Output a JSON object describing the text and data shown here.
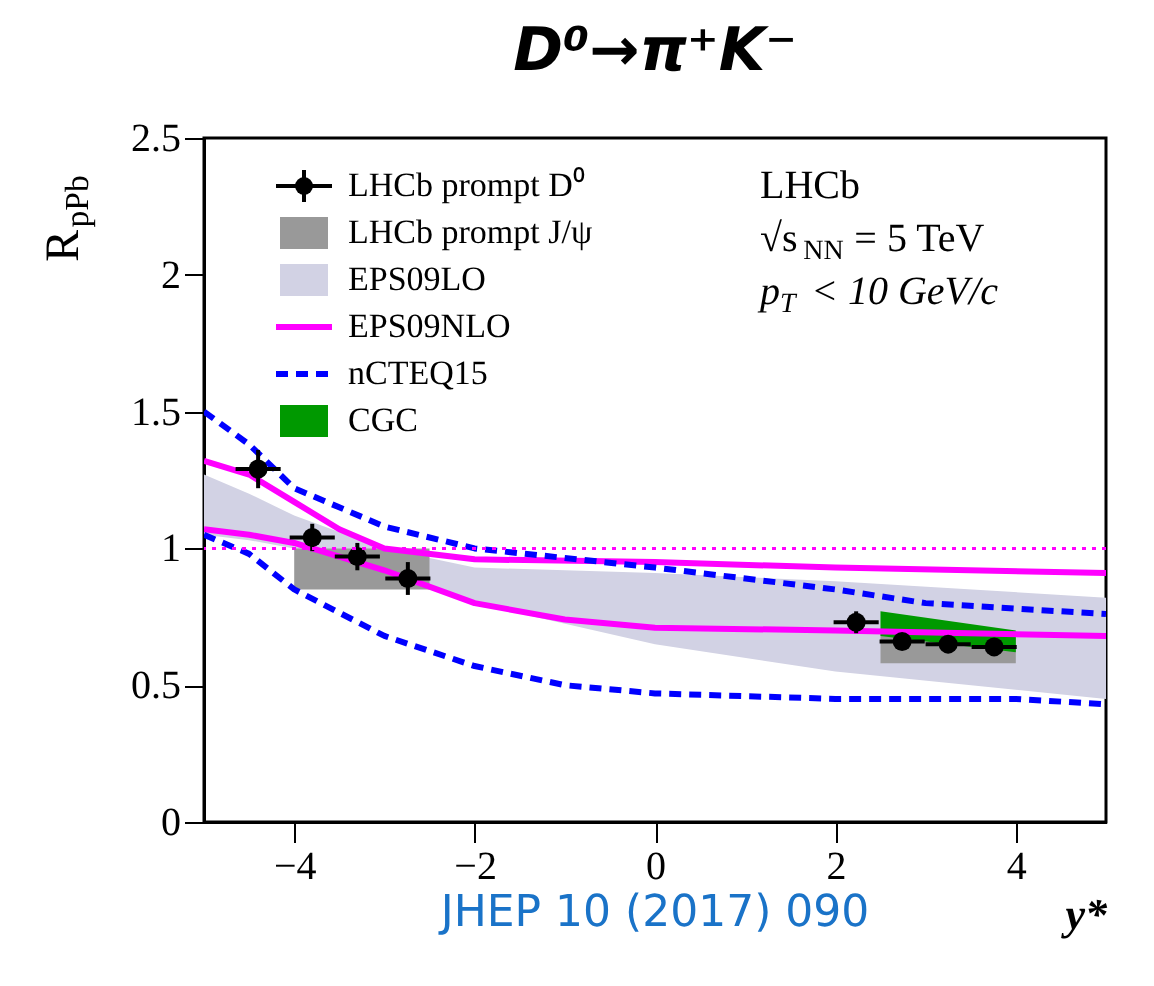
{
  "chart_data": {
    "type": "line",
    "title": "D⁰→π⁺K⁻",
    "xlabel": "y*",
    "ylabel": "R$_{pPb}$",
    "xlim": [
      -5,
      5
    ],
    "xticks": [
      -4,
      -2,
      0,
      2,
      4
    ],
    "ylim": [
      0,
      2.5
    ],
    "yticks": [
      0,
      0.5,
      1,
      1.5,
      2,
      2.5
    ],
    "grid": false,
    "legend": "top left",
    "annotations": [
      "LHCb",
      "√s$_{NN}$ = 5 TeV",
      "p$_{T}$ < 10 GeV/c",
      "JHEP 10 (2017) 090"
    ],
    "ref_lines": [
      {
        "axis": "y",
        "value": 1,
        "color": "#ff00ff",
        "line_style": "dotted"
      }
    ],
    "series": [
      {
        "name": "LHCb prompt D⁰",
        "type": "scatter",
        "marker": "circle",
        "color": "#000000",
        "x": [
          -4.4,
          -3.8,
          -3.3,
          -2.74,
          2.23,
          2.74,
          3.25,
          3.76
        ],
        "values": [
          1.29,
          1.04,
          0.97,
          0.89,
          0.73,
          0.66,
          0.65,
          0.64
        ],
        "errors": [
          0.07,
          0.05,
          0.05,
          0.06,
          0.04,
          0.03,
          0.03,
          0.03
        ],
        "xerrors": [
          0.25,
          0.25,
          0.25,
          0.25,
          0.25,
          0.25,
          0.25,
          0.25
        ]
      },
      {
        "name": "LHCb prompt J/ψ",
        "type": "area",
        "color": "#999999",
        "x": [
          -4,
          -2.5
        ],
        "values": [
          null,
          null
        ],
        "lower": [
          0.85,
          0.85
        ],
        "upper": [
          1.0,
          1.0
        ]
      },
      {
        "name": "EPS09LO",
        "type": "area",
        "color": "#d2d2e4",
        "x": [
          -5,
          -4.5,
          -4,
          -3,
          -2,
          0,
          2,
          5
        ],
        "values": [
          null,
          null,
          null,
          null,
          null,
          null,
          null,
          null
        ],
        "lower": [
          1.05,
          1.03,
          1.0,
          0.9,
          0.8,
          0.65,
          0.55,
          0.45
        ],
        "upper": [
          1.27,
          1.2,
          1.12,
          1.0,
          0.93,
          0.91,
          0.88,
          0.82
        ]
      },
      {
        "type": "area",
        "color": "#999999",
        "x": [
          2.5,
          4
        ],
        "values": [
          null,
          null
        ],
        "lower": [
          0.58,
          0.58
        ],
        "upper": [
          0.69,
          0.69
        ]
      },
      {
        "name": "EPS09NLO",
        "color": "#ff00ff",
        "x": [
          -5,
          -4.5,
          -4,
          -3.5,
          -3,
          -2,
          0,
          2,
          5
        ],
        "values": [
          1.32,
          1.27,
          1.17,
          1.07,
          1.0,
          0.96,
          0.95,
          0.93,
          0.91
        ]
      },
      {
        "color": "#ff00ff",
        "x": [
          -5,
          -4.5,
          -4,
          -3,
          -2,
          -1,
          0,
          2,
          5
        ],
        "values": [
          1.07,
          1.05,
          1.02,
          0.92,
          0.8,
          0.74,
          0.71,
          0.7,
          0.68
        ]
      },
      {
        "name": "nCTEQ15",
        "line_style": "dashed",
        "color": "#0000ff",
        "x": [
          -5,
          -4.5,
          -4,
          -3,
          -2,
          0,
          2,
          3,
          5
        ],
        "values": [
          1.5,
          1.38,
          1.22,
          1.08,
          1.0,
          0.93,
          0.85,
          0.8,
          0.76
        ]
      },
      {
        "line_style": "dashed",
        "color": "#0000ff",
        "x": [
          -5,
          -4.5,
          -4,
          -3,
          -2,
          -1,
          0,
          2,
          4,
          5
        ],
        "values": [
          1.05,
          0.98,
          0.85,
          0.68,
          0.57,
          0.5,
          0.47,
          0.45,
          0.45,
          0.43
        ]
      },
      {
        "name": "CGC",
        "type": "area",
        "color": "#009900",
        "x": [
          2.5,
          4
        ],
        "values": [
          null,
          null
        ],
        "lower": [
          0.68,
          0.62
        ],
        "upper": [
          0.77,
          0.7
        ]
      }
    ]
  }
}
